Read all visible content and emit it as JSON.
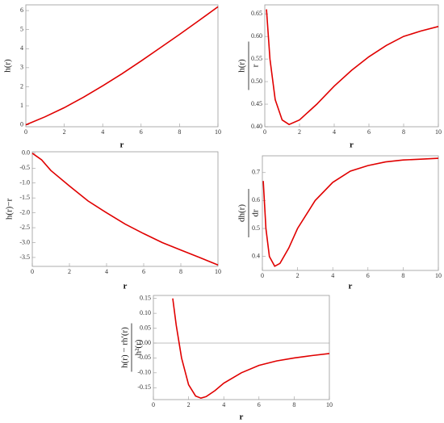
{
  "chart_data": [
    {
      "type": "line",
      "ylabel": "h(r)",
      "xlabel": "r",
      "color": "#e00000",
      "x": [
        0,
        1,
        2,
        3,
        4,
        5,
        6,
        7,
        8,
        9,
        10
      ],
      "values": [
        0,
        0.42,
        0.9,
        1.45,
        2.05,
        2.68,
        3.35,
        4.05,
        4.75,
        5.47,
        6.2
      ],
      "xlim": [
        0,
        10
      ],
      "ylim": [
        -0.1,
        6.3
      ],
      "xticks": [
        0,
        2,
        4,
        6,
        8,
        10
      ],
      "yticks": [
        0,
        1,
        2,
        3,
        4,
        5,
        6
      ]
    },
    {
      "type": "line",
      "ylabel_numerator": "h(r)",
      "ylabel_denominator": "r",
      "xlabel": "r",
      "color": "#e00000",
      "x": [
        0.1,
        0.3,
        0.6,
        1,
        1.4,
        2,
        3,
        4,
        5,
        6,
        7,
        8,
        9,
        10
      ],
      "values": [
        0.66,
        0.55,
        0.46,
        0.415,
        0.405,
        0.415,
        0.45,
        0.49,
        0.525,
        0.555,
        0.58,
        0.6,
        0.612,
        0.622
      ],
      "xlim": [
        0,
        10
      ],
      "ylim": [
        0.4,
        0.67
      ],
      "xticks": [
        0,
        2,
        4,
        6,
        8,
        10
      ],
      "yticks": [
        {
          "value": 0.4,
          "label": "0.40"
        },
        0.45,
        {
          "value": 0.5,
          "label": "0.50"
        },
        0.55,
        {
          "value": 0.6,
          "label": "0.60"
        },
        0.65
      ]
    },
    {
      "type": "line",
      "ylabel": "h(r)−r",
      "xlabel": "r",
      "color": "#e00000",
      "x": [
        0,
        0.5,
        1,
        2,
        3,
        4,
        5,
        6,
        7,
        8,
        9,
        10
      ],
      "values": [
        0,
        -0.22,
        -0.58,
        -1.1,
        -1.6,
        -2.0,
        -2.38,
        -2.7,
        -3.0,
        -3.25,
        -3.5,
        -3.75
      ],
      "xlim": [
        0,
        10
      ],
      "ylim": [
        -3.8,
        0.05
      ],
      "xticks": [
        0,
        2,
        4,
        6,
        8,
        10
      ],
      "yticks": [
        {
          "value": 0,
          "label": "0.0"
        },
        -0.5,
        {
          "value": -1,
          "label": "-1.0"
        },
        -1.5,
        {
          "value": -2,
          "label": "-2.0"
        },
        -2.5,
        {
          "value": -3,
          "label": "-3.0"
        },
        -3.5
      ]
    },
    {
      "type": "line",
      "ylabel_numerator": "dh(r)",
      "ylabel_denominator": "dr",
      "xlabel": "r",
      "color": "#e00000",
      "x": [
        0.05,
        0.2,
        0.4,
        0.7,
        1,
        1.5,
        2,
        3,
        4,
        5,
        6,
        7,
        8,
        9,
        10
      ],
      "values": [
        0.67,
        0.5,
        0.4,
        0.365,
        0.375,
        0.43,
        0.5,
        0.6,
        0.665,
        0.705,
        0.725,
        0.738,
        0.745,
        0.748,
        0.751
      ],
      "xlim": [
        0,
        10
      ],
      "ylim": [
        0.35,
        0.76
      ],
      "xticks": [
        0,
        2,
        4,
        6,
        8,
        10
      ],
      "yticks": [
        0.4,
        0.5,
        0.6,
        0.7
      ]
    },
    {
      "type": "line",
      "ylabel_numerator": "h(r) − rh′(r)",
      "ylabel_denominator": "h²(r)",
      "xlabel": "r",
      "color": "#e00000",
      "x": [
        1.1,
        1.3,
        1.6,
        2,
        2.4,
        2.7,
        3,
        3.5,
        4,
        5,
        6,
        7,
        8,
        9,
        10
      ],
      "values": [
        0.15,
        0.06,
        -0.05,
        -0.14,
        -0.178,
        -0.185,
        -0.18,
        -0.16,
        -0.135,
        -0.1,
        -0.075,
        -0.06,
        -0.05,
        -0.042,
        -0.035
      ],
      "xlim": [
        0,
        10
      ],
      "ylim": [
        -0.19,
        0.16
      ],
      "xticks": [
        0,
        2,
        4,
        6,
        8,
        10
      ],
      "yticks": [
        0.15,
        {
          "value": 0.1,
          "label": "0.10"
        },
        0.05,
        {
          "value": 0,
          "label": "0.00"
        },
        -0.05,
        {
          "value": -0.1,
          "label": "-0.10"
        },
        -0.15
      ],
      "hline": 0
    }
  ]
}
